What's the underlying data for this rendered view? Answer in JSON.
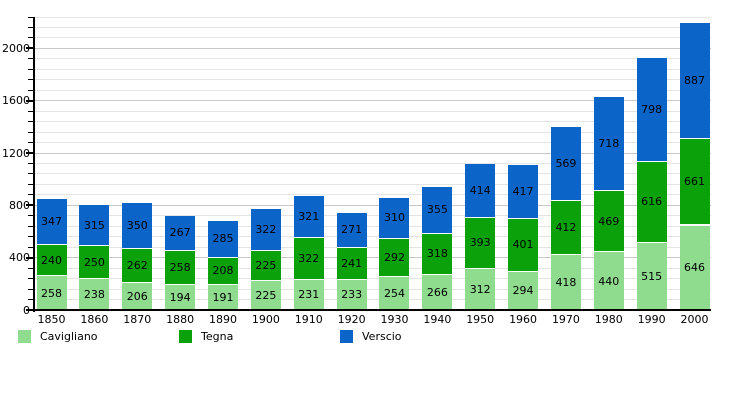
{
  "chart_data": {
    "type": "bar",
    "stacked": true,
    "title": "",
    "xlabel": "",
    "ylabel": "",
    "categories": [
      "1850",
      "1860",
      "1870",
      "1880",
      "1890",
      "1900",
      "1910",
      "1920",
      "1930",
      "1940",
      "1950",
      "1960",
      "1970",
      "1980",
      "1990",
      "2000"
    ],
    "series": [
      {
        "name": "Cavigliano",
        "color": "#8fdc8f",
        "values": [
          258,
          238,
          206,
          194,
          191,
          225,
          231,
          233,
          254,
          266,
          312,
          294,
          418,
          440,
          515,
          646
        ]
      },
      {
        "name": "Tegna",
        "color": "#0aa10a",
        "values": [
          240,
          250,
          262,
          258,
          208,
          225,
          322,
          241,
          292,
          318,
          393,
          401,
          412,
          469,
          616,
          661
        ]
      },
      {
        "name": "Verscio",
        "color": "#0b64c8",
        "values": [
          347,
          315,
          350,
          267,
          285,
          322,
          321,
          271,
          310,
          355,
          414,
          417,
          569,
          718,
          798,
          887
        ]
      }
    ],
    "totals": [
      845,
      803,
      818,
      719,
      684,
      772,
      874,
      745,
      856,
      939,
      1119,
      1112,
      1399,
      1627,
      1929,
      2194
    ],
    "ylim": [
      0,
      2240
    ],
    "y_major_tick_step": 400,
    "y_minor_tick_step": 80,
    "y_major_tick_labels": [
      "0",
      "400",
      "800",
      "1200",
      "1600",
      "2000"
    ],
    "grid": true,
    "value_labels": "inside-segments",
    "legend_position": "bottom-left"
  },
  "legend": {
    "items": [
      {
        "label": "Cavigliano",
        "color": "#8fdc8f"
      },
      {
        "label": "Tegna",
        "color": "#0aa10a"
      },
      {
        "label": "Verscio",
        "color": "#0b64c8"
      }
    ]
  },
  "colors": {
    "background": "#ffffff",
    "axis": "#000000",
    "gridline_minor": "#e4e4e4",
    "gridline_major": "#c8c8c8",
    "label_text": "#000000"
  }
}
